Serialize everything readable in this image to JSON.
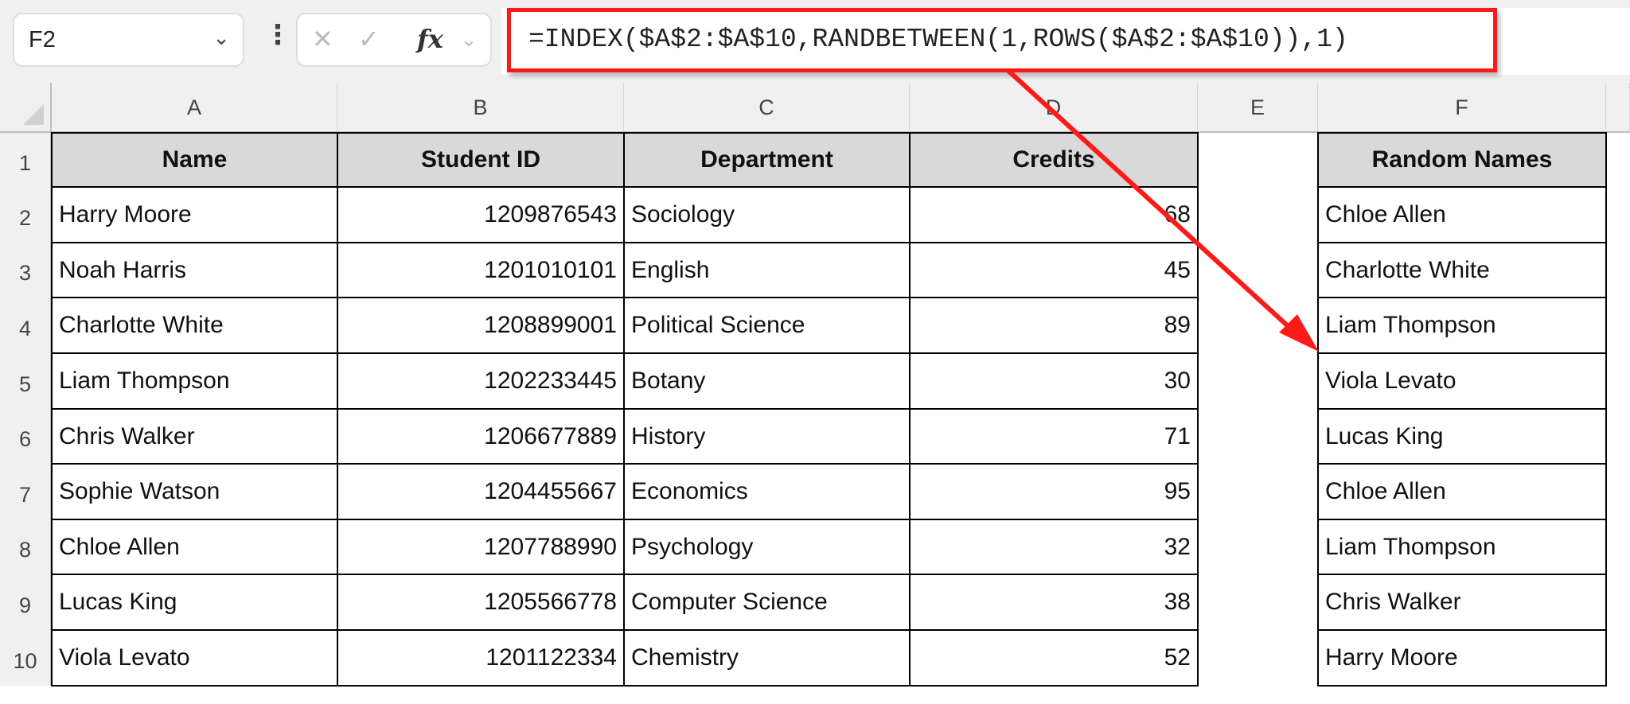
{
  "toolbar": {
    "name_box": "F2",
    "cancel_icon": "✕",
    "enter_icon": "✓",
    "fx_label": "fx",
    "formula": "=INDEX($A$2:$A$10,RANDBETWEEN(1,ROWS($A$2:$A$10)),1)"
  },
  "annotation_color": "#ff1a1a",
  "columns": [
    "A",
    "B",
    "C",
    "D",
    "E",
    "F"
  ],
  "rows": [
    "1",
    "2",
    "3",
    "4",
    "5",
    "6",
    "7",
    "8",
    "9",
    "10"
  ],
  "table": {
    "headers": [
      "Name",
      "Student ID",
      "Department",
      "Credits"
    ],
    "rows": [
      [
        "Harry Moore",
        "1209876543",
        "Sociology",
        "68"
      ],
      [
        "Noah Harris",
        "1201010101",
        "English",
        "45"
      ],
      [
        "Charlotte White",
        "1208899001",
        "Political Science",
        "89"
      ],
      [
        "Liam Thompson",
        "1202233445",
        "Botany",
        "30"
      ],
      [
        "Chris Walker",
        "1206677889",
        "History",
        "71"
      ],
      [
        "Sophie Watson",
        "1204455667",
        "Economics",
        "95"
      ],
      [
        "Chloe Allen",
        "1207788990",
        "Psychology",
        "32"
      ],
      [
        "Lucas King",
        "1205566778",
        "Computer Science",
        "38"
      ],
      [
        "Viola Levato",
        "1201122334",
        "Chemistry",
        "52"
      ]
    ]
  },
  "random": {
    "header": "Random Names",
    "values": [
      "Chloe Allen",
      "Charlotte White",
      "Liam Thompson",
      "Viola Levato",
      "Lucas King",
      "Chloe Allen",
      "Liam Thompson",
      "Chris Walker",
      "Harry Moore"
    ]
  }
}
